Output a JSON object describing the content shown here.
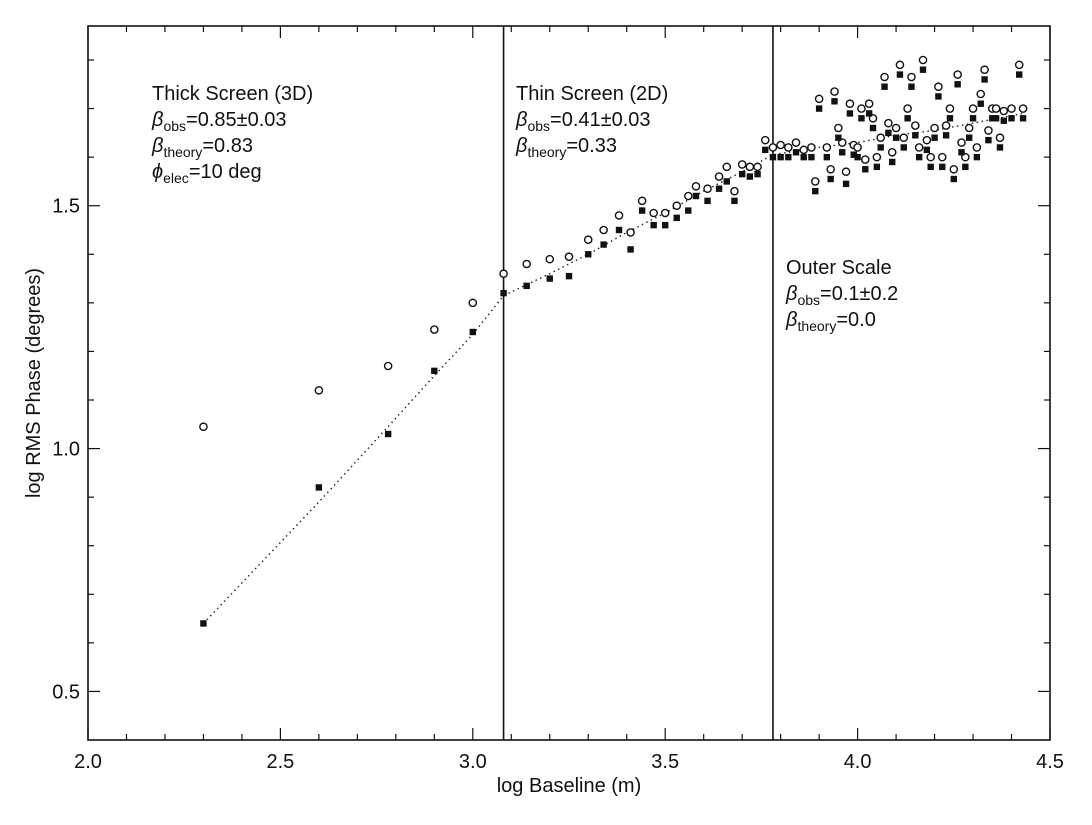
{
  "chart_data": {
    "type": "scatter",
    "xlabel": "log Baseline (m)",
    "ylabel": "log RMS Phase (degrees)",
    "xlim": [
      2.0,
      4.5
    ],
    "ylim": [
      0.4,
      1.87
    ],
    "x_ticks": [
      "2.0",
      "2.5",
      "3.0",
      "3.5",
      "4.0",
      "4.5"
    ],
    "y_ticks": [
      "0.5",
      "1.0",
      "1.5"
    ],
    "grid": false,
    "vertical_lines": [
      3.08,
      3.78
    ],
    "annotations": [
      {
        "lines": [
          {
            "text": "Thick Screen (3D)"
          },
          {
            "sym": "β",
            "sub": "obs",
            "rest": "=0.85±0.03"
          },
          {
            "sym": "β",
            "sub": "theory",
            "rest": "=0.83"
          },
          {
            "sym": "ϕ",
            "sub": "elec",
            "rest": "=10 deg"
          }
        ]
      },
      {
        "lines": [
          {
            "text": "Thin Screen (2D)"
          },
          {
            "sym": "β",
            "sub": "obs",
            "rest": "=0.41±0.03"
          },
          {
            "sym": "β",
            "sub": "theory",
            "rest": "=0.33"
          }
        ]
      },
      {
        "lines": [
          {
            "text": "Outer Scale"
          },
          {
            "sym": "β",
            "sub": "obs",
            "rest": "=0.1±0.2"
          },
          {
            "sym": "β",
            "sub": "theory",
            "rest": "=0.0"
          }
        ]
      }
    ],
    "series": [
      {
        "marker": "open-circle",
        "points": [
          [
            2.3,
            1.045
          ],
          [
            2.6,
            1.12
          ],
          [
            2.78,
            1.17
          ],
          [
            2.9,
            1.245
          ],
          [
            3.0,
            1.3
          ],
          [
            3.08,
            1.36
          ],
          [
            3.14,
            1.38
          ],
          [
            3.2,
            1.39
          ],
          [
            3.25,
            1.395
          ],
          [
            3.3,
            1.43
          ],
          [
            3.34,
            1.45
          ],
          [
            3.38,
            1.48
          ],
          [
            3.41,
            1.445
          ],
          [
            3.44,
            1.51
          ],
          [
            3.47,
            1.485
          ],
          [
            3.5,
            1.485
          ],
          [
            3.53,
            1.5
          ],
          [
            3.56,
            1.52
          ],
          [
            3.58,
            1.54
          ],
          [
            3.61,
            1.535
          ],
          [
            3.64,
            1.56
          ],
          [
            3.66,
            1.58
          ],
          [
            3.68,
            1.53
          ],
          [
            3.7,
            1.585
          ],
          [
            3.72,
            1.58
          ],
          [
            3.74,
            1.58
          ],
          [
            3.76,
            1.635
          ],
          [
            3.78,
            1.62
          ],
          [
            3.8,
            1.625
          ],
          [
            3.82,
            1.62
          ],
          [
            3.84,
            1.63
          ],
          [
            3.86,
            1.615
          ],
          [
            3.88,
            1.62
          ],
          [
            3.89,
            1.55
          ],
          [
            3.9,
            1.72
          ],
          [
            3.92,
            1.62
          ],
          [
            3.93,
            1.575
          ],
          [
            3.94,
            1.735
          ],
          [
            3.95,
            1.66
          ],
          [
            3.96,
            1.63
          ],
          [
            3.97,
            1.57
          ],
          [
            3.98,
            1.71
          ],
          [
            3.99,
            1.625
          ],
          [
            4.0,
            1.62
          ],
          [
            4.01,
            1.7
          ],
          [
            4.02,
            1.595
          ],
          [
            4.03,
            1.71
          ],
          [
            4.04,
            1.68
          ],
          [
            4.05,
            1.6
          ],
          [
            4.06,
            1.64
          ],
          [
            4.07,
            1.765
          ],
          [
            4.08,
            1.67
          ],
          [
            4.09,
            1.61
          ],
          [
            4.1,
            1.66
          ],
          [
            4.11,
            1.79
          ],
          [
            4.12,
            1.64
          ],
          [
            4.13,
            1.7
          ],
          [
            4.14,
            1.765
          ],
          [
            4.15,
            1.665
          ],
          [
            4.16,
            1.62
          ],
          [
            4.17,
            1.8
          ],
          [
            4.18,
            1.635
          ],
          [
            4.19,
            1.6
          ],
          [
            4.2,
            1.66
          ],
          [
            4.21,
            1.745
          ],
          [
            4.22,
            1.6
          ],
          [
            4.23,
            1.665
          ],
          [
            4.24,
            1.7
          ],
          [
            4.25,
            1.575
          ],
          [
            4.26,
            1.77
          ],
          [
            4.27,
            1.63
          ],
          [
            4.28,
            1.6
          ],
          [
            4.29,
            1.66
          ],
          [
            4.3,
            1.7
          ],
          [
            4.31,
            1.62
          ],
          [
            4.32,
            1.73
          ],
          [
            4.33,
            1.78
          ],
          [
            4.34,
            1.655
          ],
          [
            4.35,
            1.7
          ],
          [
            4.36,
            1.7
          ],
          [
            4.37,
            1.64
          ],
          [
            4.38,
            1.695
          ],
          [
            4.4,
            1.7
          ],
          [
            4.42,
            1.79
          ],
          [
            4.43,
            1.7
          ]
        ]
      },
      {
        "marker": "filled-square",
        "points": [
          [
            2.3,
            0.64
          ],
          [
            2.6,
            0.92
          ],
          [
            2.78,
            1.03
          ],
          [
            2.9,
            1.16
          ],
          [
            3.0,
            1.24
          ],
          [
            3.08,
            1.32
          ],
          [
            3.14,
            1.335
          ],
          [
            3.2,
            1.35
          ],
          [
            3.25,
            1.355
          ],
          [
            3.3,
            1.4
          ],
          [
            3.34,
            1.42
          ],
          [
            3.38,
            1.45
          ],
          [
            3.41,
            1.41
          ],
          [
            3.44,
            1.49
          ],
          [
            3.47,
            1.46
          ],
          [
            3.5,
            1.46
          ],
          [
            3.53,
            1.475
          ],
          [
            3.56,
            1.49
          ],
          [
            3.58,
            1.52
          ],
          [
            3.61,
            1.51
          ],
          [
            3.64,
            1.535
          ],
          [
            3.66,
            1.55
          ],
          [
            3.68,
            1.51
          ],
          [
            3.7,
            1.565
          ],
          [
            3.72,
            1.56
          ],
          [
            3.74,
            1.565
          ],
          [
            3.76,
            1.615
          ],
          [
            3.78,
            1.6
          ],
          [
            3.8,
            1.6
          ],
          [
            3.82,
            1.6
          ],
          [
            3.84,
            1.61
          ],
          [
            3.86,
            1.6
          ],
          [
            3.88,
            1.6
          ],
          [
            3.89,
            1.53
          ],
          [
            3.9,
            1.7
          ],
          [
            3.92,
            1.6
          ],
          [
            3.93,
            1.555
          ],
          [
            3.94,
            1.715
          ],
          [
            3.95,
            1.64
          ],
          [
            3.96,
            1.61
          ],
          [
            3.97,
            1.545
          ],
          [
            3.98,
            1.69
          ],
          [
            3.99,
            1.605
          ],
          [
            4.0,
            1.6
          ],
          [
            4.01,
            1.68
          ],
          [
            4.02,
            1.575
          ],
          [
            4.03,
            1.69
          ],
          [
            4.04,
            1.66
          ],
          [
            4.05,
            1.58
          ],
          [
            4.06,
            1.62
          ],
          [
            4.07,
            1.745
          ],
          [
            4.08,
            1.65
          ],
          [
            4.09,
            1.59
          ],
          [
            4.1,
            1.64
          ],
          [
            4.11,
            1.77
          ],
          [
            4.12,
            1.62
          ],
          [
            4.13,
            1.68
          ],
          [
            4.14,
            1.745
          ],
          [
            4.15,
            1.645
          ],
          [
            4.16,
            1.6
          ],
          [
            4.17,
            1.78
          ],
          [
            4.18,
            1.615
          ],
          [
            4.19,
            1.58
          ],
          [
            4.2,
            1.64
          ],
          [
            4.21,
            1.725
          ],
          [
            4.22,
            1.58
          ],
          [
            4.23,
            1.645
          ],
          [
            4.24,
            1.68
          ],
          [
            4.25,
            1.555
          ],
          [
            4.26,
            1.75
          ],
          [
            4.27,
            1.61
          ],
          [
            4.28,
            1.58
          ],
          [
            4.29,
            1.64
          ],
          [
            4.3,
            1.68
          ],
          [
            4.31,
            1.6
          ],
          [
            4.32,
            1.71
          ],
          [
            4.33,
            1.76
          ],
          [
            4.34,
            1.635
          ],
          [
            4.35,
            1.68
          ],
          [
            4.36,
            1.68
          ],
          [
            4.37,
            1.62
          ],
          [
            4.38,
            1.675
          ],
          [
            4.4,
            1.68
          ],
          [
            4.42,
            1.77
          ],
          [
            4.43,
            1.68
          ]
        ]
      },
      {
        "marker": "dotted-line",
        "points": [
          [
            2.3,
            0.64
          ],
          [
            2.6,
            0.89
          ],
          [
            2.78,
            1.045
          ],
          [
            2.9,
            1.15
          ],
          [
            3.0,
            1.235
          ],
          [
            3.08,
            1.315
          ],
          [
            3.2,
            1.36
          ],
          [
            3.3,
            1.4
          ],
          [
            3.4,
            1.445
          ],
          [
            3.5,
            1.485
          ],
          [
            3.6,
            1.53
          ],
          [
            3.7,
            1.57
          ],
          [
            3.78,
            1.605
          ],
          [
            3.9,
            1.62
          ],
          [
            4.0,
            1.63
          ],
          [
            4.1,
            1.645
          ],
          [
            4.2,
            1.655
          ],
          [
            4.3,
            1.67
          ],
          [
            4.43,
            1.69
          ]
        ]
      }
    ]
  }
}
